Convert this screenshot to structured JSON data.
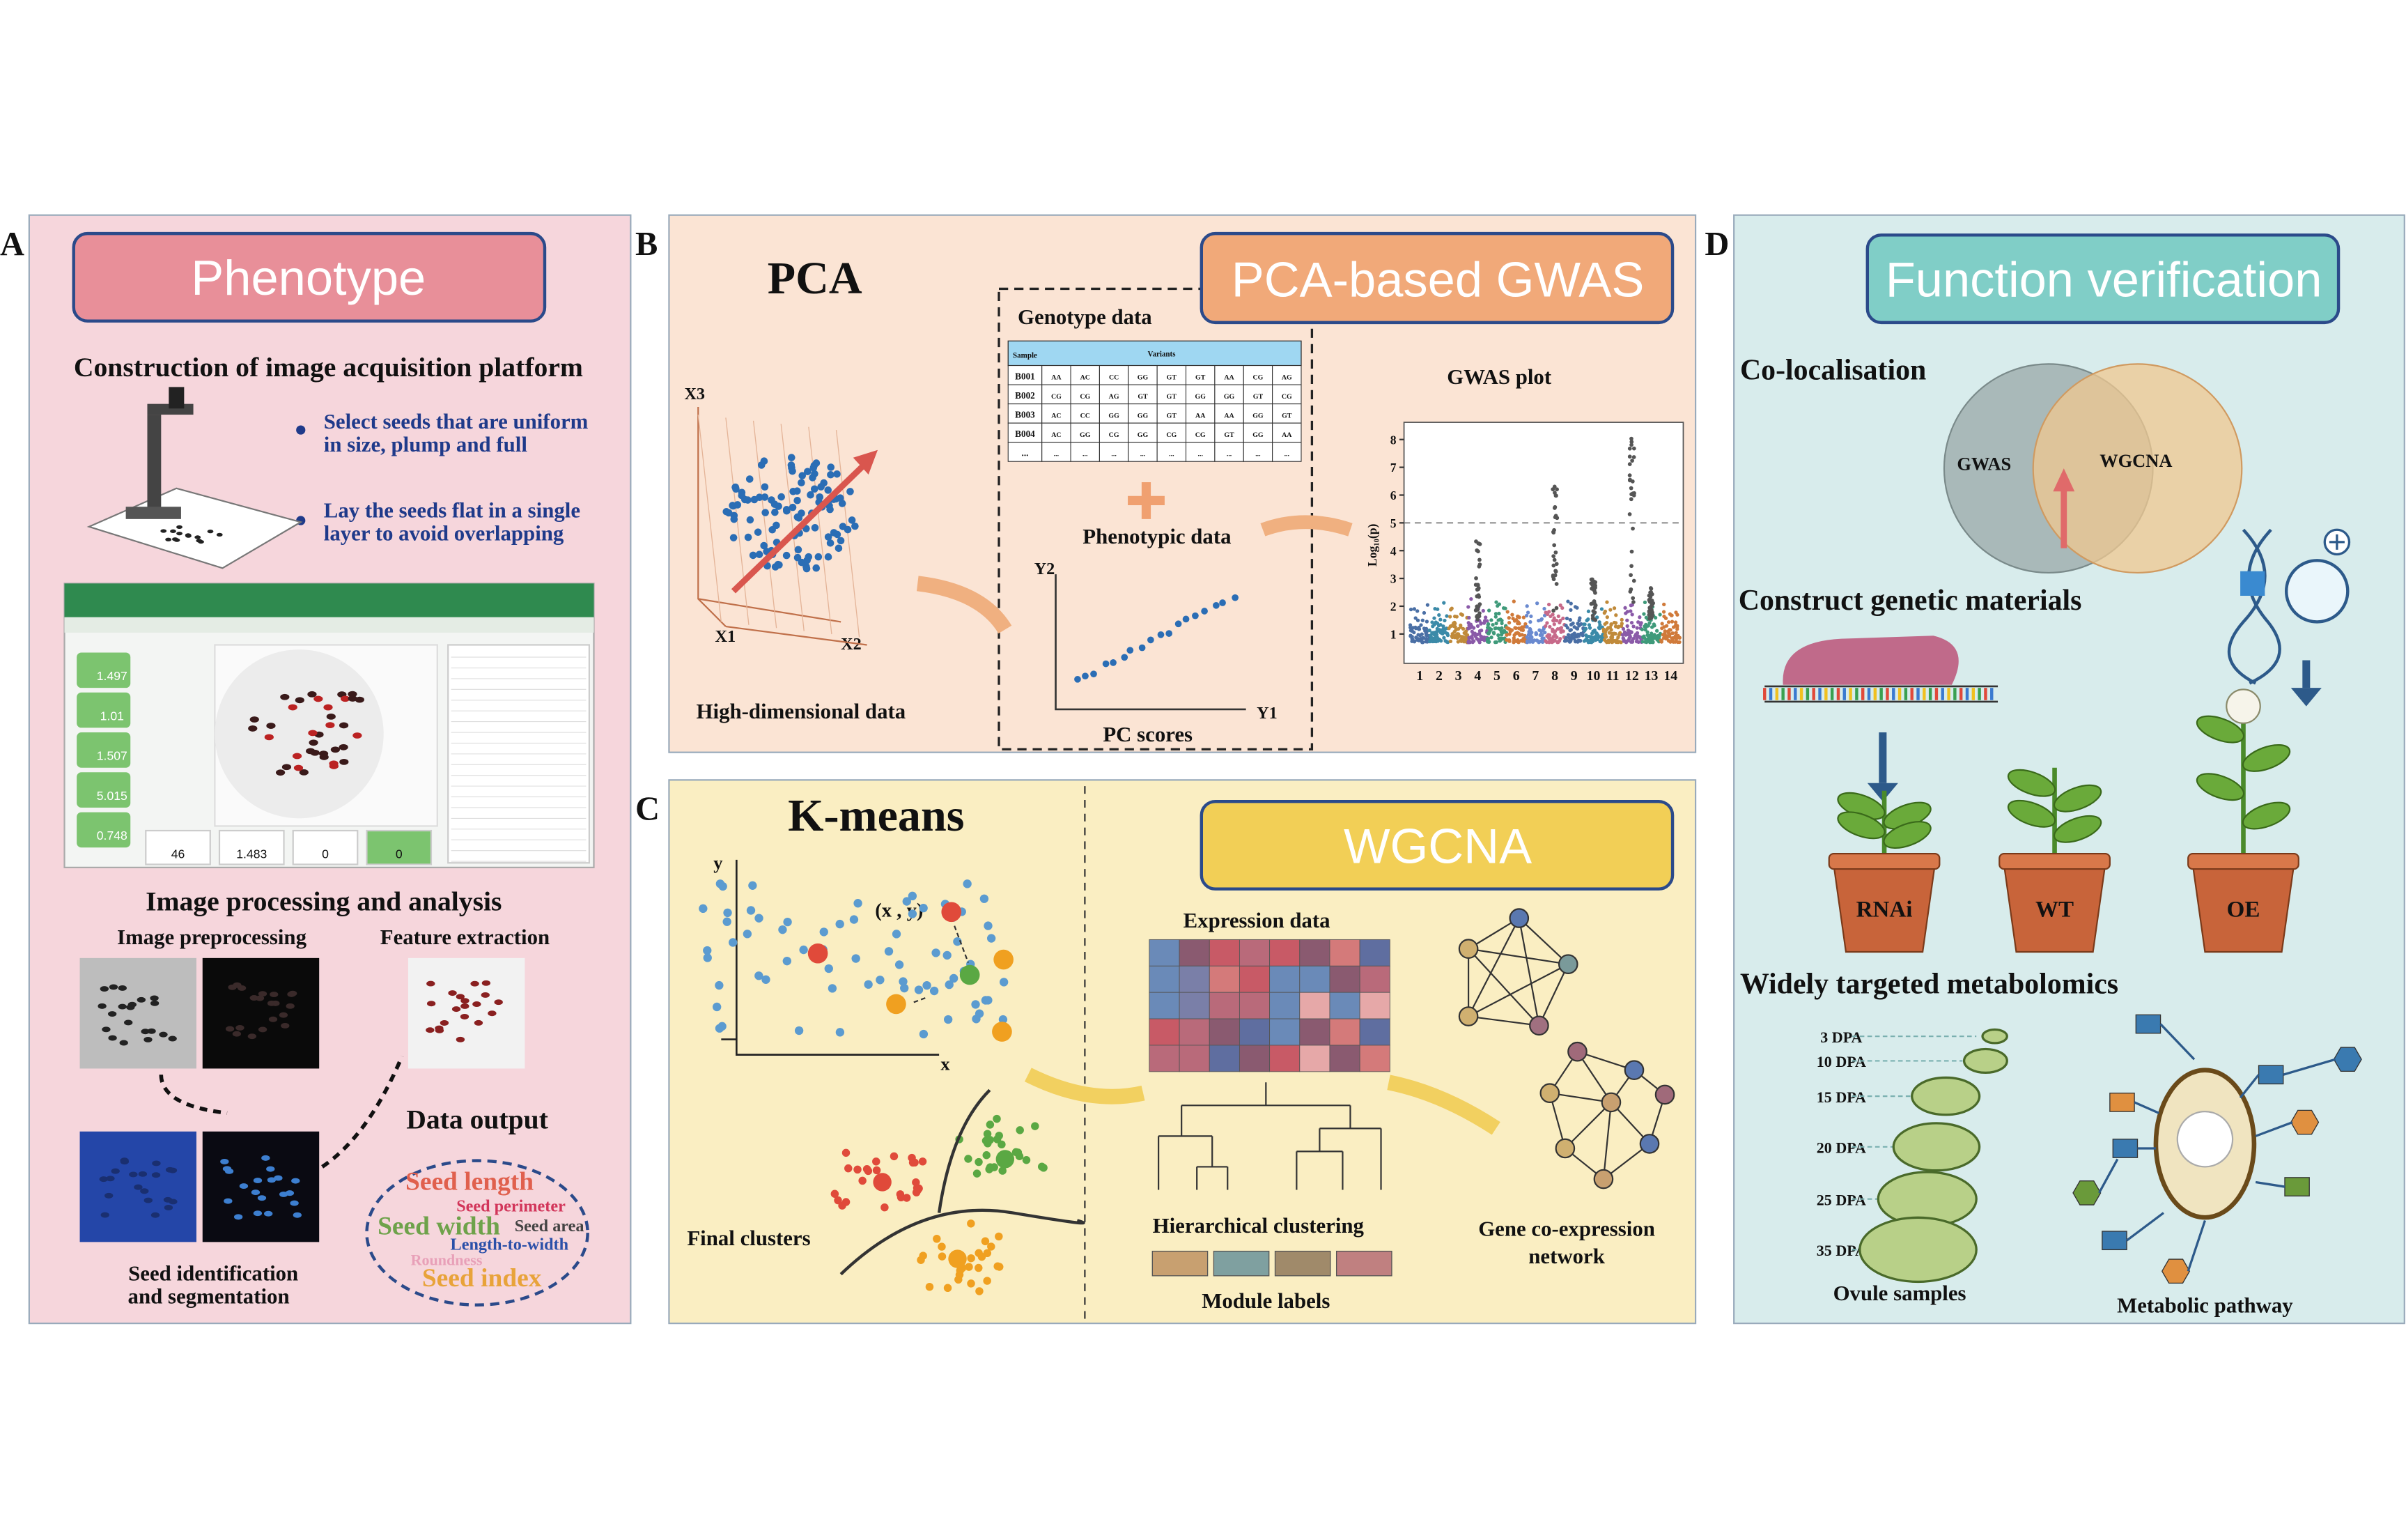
{
  "panel_a": {
    "label": "A",
    "title": "Phenotype",
    "platform_heading": "Construction of image acquisition platform",
    "bullets": [
      [
        "Select seeds that are uniform",
        "in size, plump and full"
      ],
      [
        "Lay the seeds flat in a single",
        "layer to avoid overlapping"
      ]
    ],
    "software_values": [
      "1.497",
      "1.01",
      "1.507",
      "5.015",
      "0.748"
    ],
    "software_counts": [
      "46",
      "1.483",
      "0",
      "0"
    ],
    "processing_heading": "Image processing and analysis",
    "image_preprocessing": "Image preprocessing",
    "feature_extraction": "Feature extraction",
    "segmentation": [
      "Seed identification",
      "and segmentation"
    ],
    "data_output": "Data output",
    "traits": [
      "Seed length",
      "Seed perimeter",
      "Seed width",
      "Seed area",
      "Length-to-width",
      "Roundness",
      "Seed index"
    ]
  },
  "panel_b": {
    "label": "B",
    "pca_title": "PCA",
    "gwas_title": "PCA-based GWAS",
    "genotype_heading": "Genotype data",
    "table": {
      "headers": [
        "Sample",
        "Variants"
      ],
      "rows": [
        [
          "B001",
          "AA",
          "AC",
          "CC",
          "GG",
          "GT",
          "GT",
          "AA",
          "CG",
          "AG"
        ],
        [
          "B002",
          "CG",
          "CG",
          "AG",
          "GT",
          "GT",
          "GG",
          "GG",
          "GT",
          "CG"
        ],
        [
          "B003",
          "AC",
          "CC",
          "GG",
          "GG",
          "GT",
          "AA",
          "AA",
          "GG",
          "GT"
        ],
        [
          "B004",
          "AC",
          "GG",
          "CG",
          "GG",
          "CG",
          "CG",
          "GT",
          "GG",
          "AA"
        ],
        [
          "...",
          "...",
          "...",
          "...",
          "...",
          "...",
          "...",
          "...",
          "...",
          "..."
        ]
      ]
    },
    "phenotypic": "Phenotypic data",
    "pc_axes": [
      "Y2",
      "Y1"
    ],
    "pc_scores": "PC scores",
    "pca_axes": [
      "X3",
      "X1",
      "X2"
    ],
    "high_dim": "High-dimensional data",
    "gwas_plot_title": "GWAS plot",
    "gwas_ylabel": "Log₁₀(p)",
    "gwas_yticks": [
      1,
      2,
      3,
      4,
      5,
      6,
      7,
      8
    ],
    "gwas_threshold": 5,
    "chromosomes": [
      "1",
      "2",
      "3",
      "4",
      "5",
      "6",
      "7",
      "8",
      "9",
      "10",
      "11",
      "12",
      "13",
      "14"
    ]
  },
  "panel_c": {
    "label": "C",
    "kmeans_title": "K-means",
    "wgcna_title": "WGCNA",
    "axes": [
      "y",
      "x"
    ],
    "point": "(x , y)",
    "final_clusters": "Final clusters",
    "expression": "Expression data",
    "hierarchical": "Hierarchical clustering",
    "module_labels": "Module labels",
    "network": [
      "Gene co-expression",
      "network"
    ]
  },
  "panel_d": {
    "label": "D",
    "title": "Function verification",
    "colocalisation": "Co-localisation",
    "venn": [
      "GWAS",
      "WGCNA"
    ],
    "construct": "Construct genetic materials",
    "plants": [
      "RNAi",
      "WT",
      "OE"
    ],
    "metabolomics": "Widely targeted metabolomics",
    "stages": [
      "3 DPA",
      "10 DPA",
      "15 DPA",
      "20 DPA",
      "25 DPA",
      "35 DPA"
    ],
    "ovule_samples": "Ovule samples",
    "pathway": "Metabolic pathway"
  }
}
